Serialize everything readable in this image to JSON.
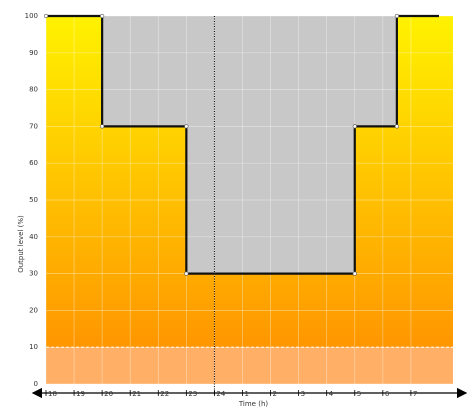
{
  "chart_data": {
    "type": "line",
    "title": "",
    "xlabel": "Time (h)",
    "ylabel": "Output level (%)",
    "x_tick_labels": [
      "18",
      "19",
      "20",
      "21",
      "22",
      "23",
      "24",
      "1",
      "2",
      "3",
      "4",
      "5",
      "6",
      "7"
    ],
    "x_range_hours_from_18": [
      0,
      14.5
    ],
    "y_ticks": [
      "0",
      "10",
      "20",
      "30",
      "40",
      "50",
      "60",
      "70",
      "80",
      "90",
      "100"
    ],
    "ylim": [
      0,
      100
    ],
    "grid": true,
    "series": [
      {
        "name": "",
        "points": [
          {
            "t": 0,
            "y": 100
          },
          {
            "t": 2,
            "y": 100
          },
          {
            "t": 2,
            "y": 70
          },
          {
            "t": 5,
            "y": 70
          },
          {
            "t": 5,
            "y": 30
          },
          {
            "t": 11,
            "y": 30
          },
          {
            "t": 11,
            "y": 70
          },
          {
            "t": 12.5,
            "y": 70
          },
          {
            "t": 12.5,
            "y": 100
          },
          {
            "t": 14,
            "y": 100
          }
        ]
      }
    ],
    "reference_lines": [
      {
        "orientation": "horizontal",
        "y": 10,
        "style": "dashed",
        "color": "#ffffff"
      },
      {
        "orientation": "vertical",
        "t": 6,
        "style": "dotted",
        "color": "#000000"
      }
    ],
    "colors": {
      "gradient_top": "#fff200",
      "gradient_bottom": "#ff8c00",
      "above_profile": "#c8c8c8",
      "line": "#111111",
      "below_min_band": "#ffb066"
    }
  }
}
